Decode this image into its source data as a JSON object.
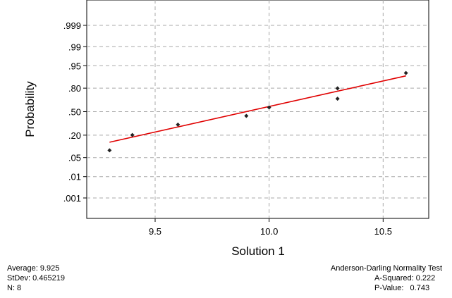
{
  "chart_data": {
    "type": "scatter",
    "title": "",
    "xlabel": "Solution 1",
    "ylabel": "Probability",
    "xlim": [
      9.2,
      10.7
    ],
    "x_ticks": [
      9.5,
      10.0,
      10.5
    ],
    "x_tick_labels": [
      "9.5",
      "10.0",
      "10.5"
    ],
    "y_scale": "normal-probability",
    "y_ticks": [
      0.001,
      0.01,
      0.05,
      0.2,
      0.5,
      0.8,
      0.95,
      0.99,
      0.999
    ],
    "y_tick_labels": [
      ".001",
      ".01",
      ".05",
      ".20",
      ".50",
      ".80",
      ".95",
      ".99",
      ".999"
    ],
    "grid": true,
    "points": [
      {
        "x": 9.3,
        "p": 0.083
      },
      {
        "x": 9.4,
        "p": 0.202
      },
      {
        "x": 9.6,
        "p": 0.321
      },
      {
        "x": 9.9,
        "p": 0.44
      },
      {
        "x": 10.0,
        "p": 0.56
      },
      {
        "x": 10.3,
        "p": 0.679
      },
      {
        "x": 10.3,
        "p": 0.798
      },
      {
        "x": 10.6,
        "p": 0.917
      }
    ],
    "fit_line": {
      "x": [
        9.3,
        10.6
      ],
      "p": [
        0.137,
        0.9
      ],
      "color": "#e00000"
    },
    "point_color": "#222222"
  },
  "stats": {
    "average": "Average: 9.925",
    "stdev": "StDev: 0.465219",
    "n": "N: 8",
    "test_title": "Anderson-Darling Normality Test",
    "a_squared": "A-Squared: 0.222",
    "p_value": "P-Value:   0.743"
  }
}
